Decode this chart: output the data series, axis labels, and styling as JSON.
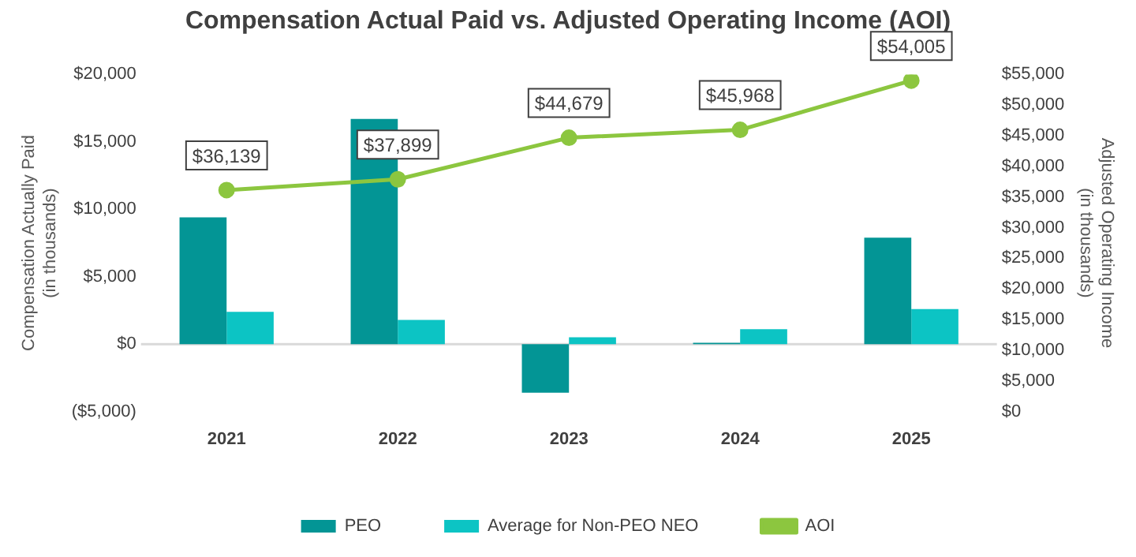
{
  "chart_data": {
    "type": "bar",
    "title": "Compensation Actual Paid vs. Adjusted Operating Income (AOI)",
    "categories": [
      "2021",
      "2022",
      "2023",
      "2024",
      "2025"
    ],
    "ylabel": "Compensation Actually Paid\n(in thousands)",
    "y2label": "Adjusted Operating Income\n(in thousands)",
    "ylim": [
      -5000,
      20000
    ],
    "yticks": [
      {
        "value": -5000,
        "label": "($5,000)"
      },
      {
        "value": 0,
        "label": "$0"
      },
      {
        "value": 5000,
        "label": "$5,000"
      },
      {
        "value": 10000,
        "label": "$10,000"
      },
      {
        "value": 15000,
        "label": "$15,000"
      },
      {
        "value": 20000,
        "label": "$20,000"
      }
    ],
    "y2lim": [
      0,
      55000
    ],
    "y2ticks": [
      {
        "value": 0,
        "label": "$0"
      },
      {
        "value": 5000,
        "label": "$5,000"
      },
      {
        "value": 10000,
        "label": "$10,000"
      },
      {
        "value": 15000,
        "label": "$15,000"
      },
      {
        "value": 20000,
        "label": "$20,000"
      },
      {
        "value": 25000,
        "label": "$25,000"
      },
      {
        "value": 30000,
        "label": "$30,000"
      },
      {
        "value": 35000,
        "label": "$35,000"
      },
      {
        "value": 40000,
        "label": "$40,000"
      },
      {
        "value": 45000,
        "label": "$45,000"
      },
      {
        "value": 50000,
        "label": "$50,000"
      },
      {
        "value": 55000,
        "label": "$55,000"
      }
    ],
    "series": [
      {
        "name": "PEO",
        "color": "#039595",
        "values": [
          9400,
          16700,
          -3600,
          100,
          7900
        ]
      },
      {
        "name": "Average for Non-PEO NEO",
        "color": "#0cc4c4",
        "values": [
          2400,
          1800,
          500,
          1100,
          2600
        ]
      },
      {
        "type": "line",
        "axis": "y2",
        "name": "AOI",
        "color": "#8cc63f",
        "marker": "circle",
        "values": [
          36139,
          37899,
          44679,
          45968,
          54005
        ],
        "value_labels": [
          "$36,139",
          "$37,899",
          "$44,679",
          "$45,968",
          "$54,005"
        ]
      }
    ],
    "ref_lines": [
      {
        "axis": "y",
        "value": 0,
        "color": "#d9d9d9"
      }
    ],
    "grid": false,
    "legend": "bottom"
  }
}
